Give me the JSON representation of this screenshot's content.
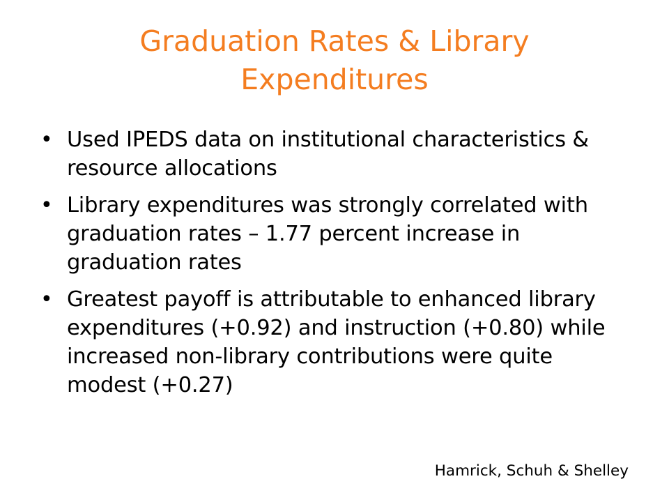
{
  "slide": {
    "title": "Graduation Rates & Library Expenditures",
    "bullet_symbol": "•",
    "bullets": [
      "Used IPEDS data on institutional characteristics & resource allocations",
      "Library expenditures was strongly correlated with graduation rates – 1.77 percent increase in graduation rates",
      "Greatest payoff is attributable to enhanced library expenditures (+0.92) and instruction (+0.80) while increased non-library contributions were quite modest (+0.27)"
    ],
    "credit": "Hamrick, Schuh & Shelley",
    "colors": {
      "title": "#f47d20",
      "text": "#000000",
      "background": "#ffffff"
    }
  }
}
